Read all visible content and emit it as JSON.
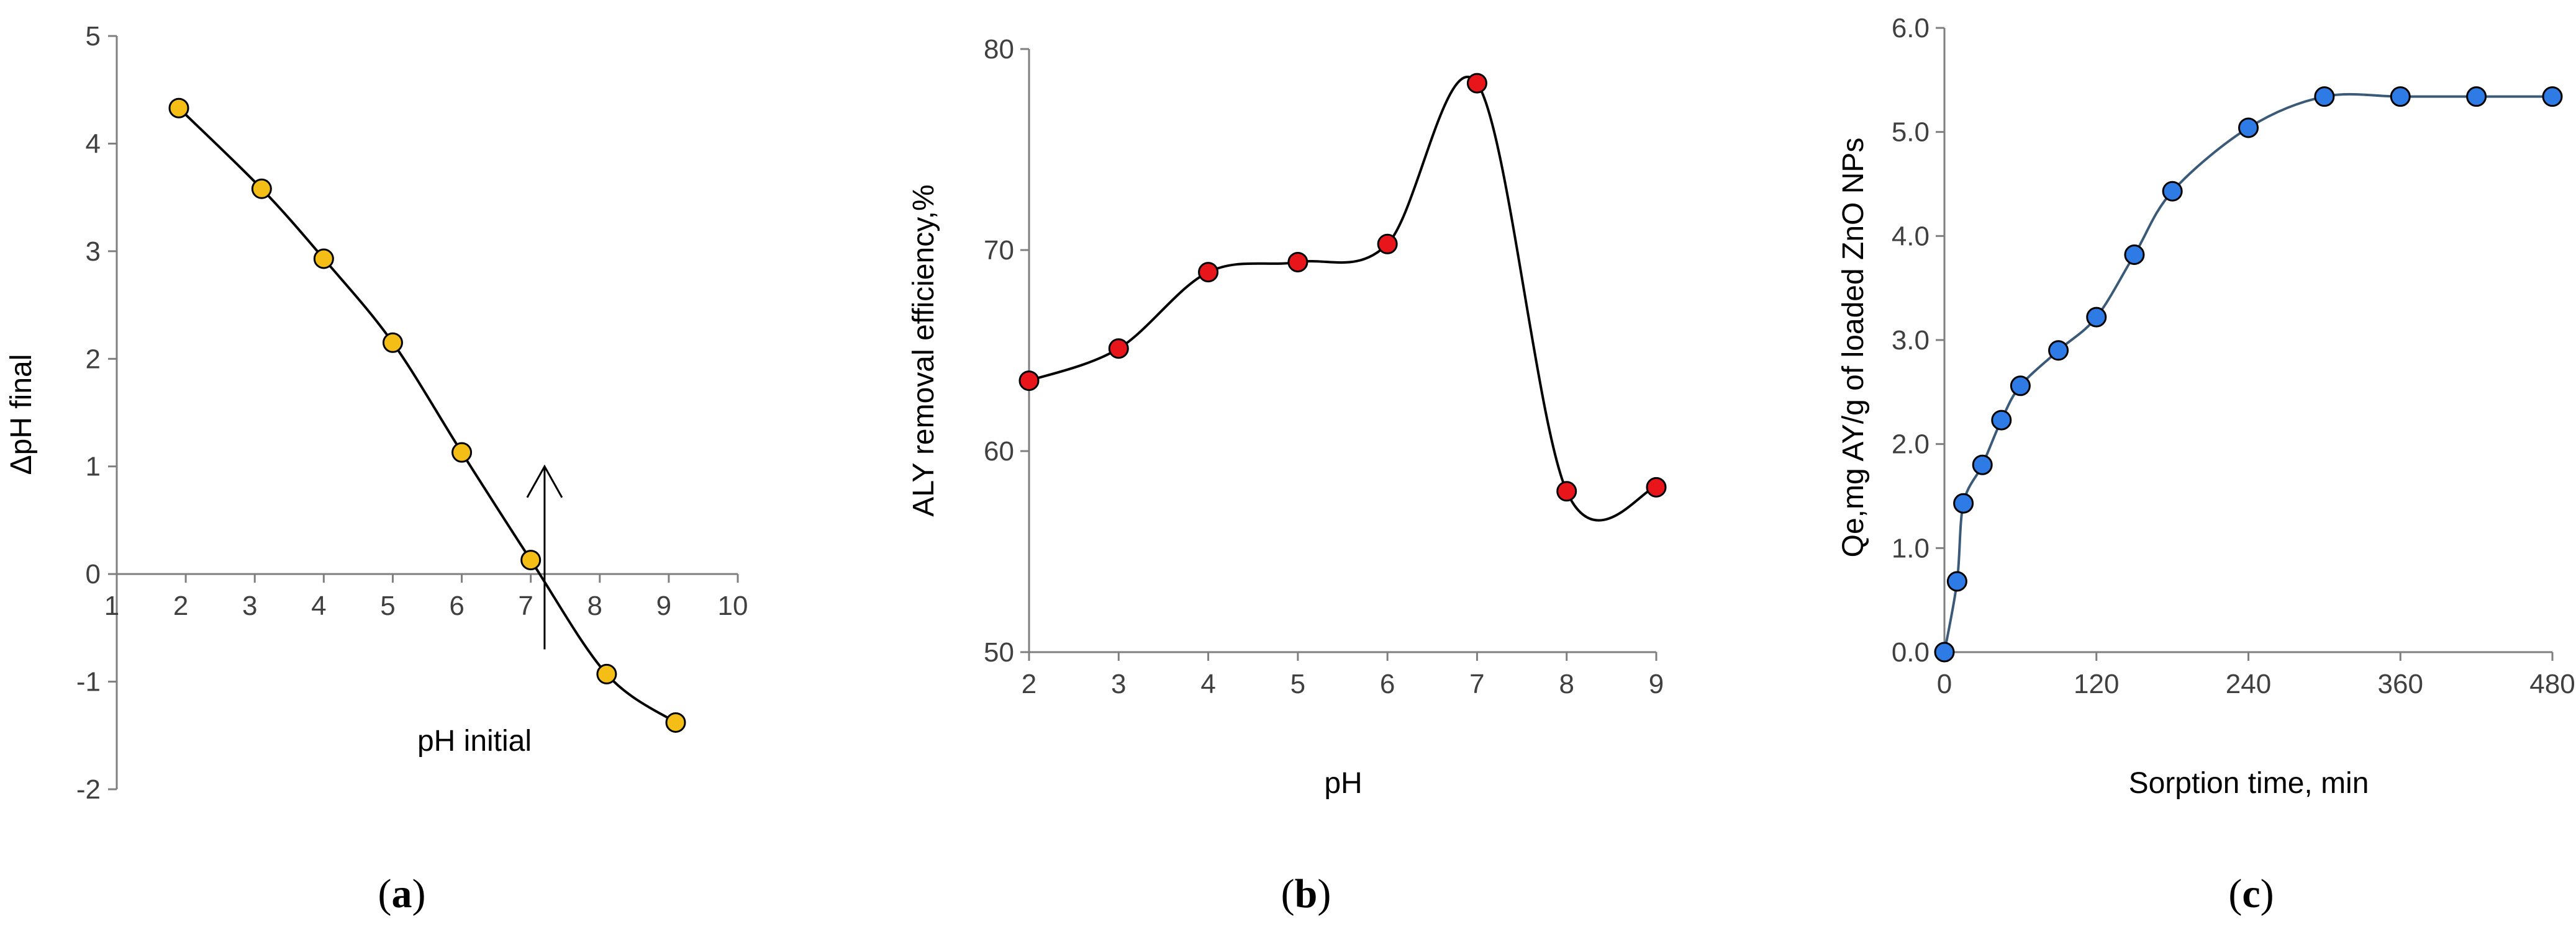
{
  "chart_data": [
    {
      "id": "a",
      "type": "line",
      "caption_letter": "a",
      "xlabel": "pH initial",
      "ylabel": "ΔpH final",
      "xlim": [
        1,
        10
      ],
      "ylim": [
        -2,
        5
      ],
      "xticks": [
        1,
        2,
        3,
        4,
        5,
        6,
        7,
        8,
        9,
        10
      ],
      "yticks": [
        -2,
        -1,
        0,
        1,
        2,
        3,
        4,
        5
      ],
      "series": [
        {
          "name": "ΔpH final",
          "x": [
            1.9,
            3.1,
            4.0,
            5.0,
            6.0,
            7.0,
            8.1,
            9.1
          ],
          "y": [
            4.33,
            3.58,
            2.93,
            2.15,
            1.13,
            0.13,
            -0.93,
            -1.38
          ],
          "marker_color": "#F5BE16"
        }
      ],
      "annotations": [
        {
          "type": "arrow",
          "x": 7.2,
          "y_from": -0.7,
          "y_to": 1.0
        }
      ]
    },
    {
      "id": "b",
      "type": "line",
      "caption_letter": "b",
      "xlabel": "pH",
      "ylabel": "ALY removal efficiency,%",
      "xlim": [
        2,
        9
      ],
      "ylim": [
        50,
        80
      ],
      "xticks": [
        2,
        3,
        4,
        5,
        6,
        7,
        8,
        9
      ],
      "yticks": [
        50,
        60,
        70,
        80
      ],
      "series": [
        {
          "name": "ALY removal efficiency",
          "x": [
            2,
            3,
            4,
            5,
            6,
            7,
            8,
            9
          ],
          "y": [
            63.5,
            65.1,
            68.9,
            69.4,
            70.3,
            78.3,
            58.0,
            58.2
          ],
          "marker_color": "#E8151B"
        }
      ]
    },
    {
      "id": "c",
      "type": "line",
      "caption_letter": "c",
      "xlabel": "Sorption time, min",
      "ylabel": "Qe,mg AY/g of loaded ZnO NPs",
      "xlim": [
        0,
        480
      ],
      "ylim": [
        0,
        6
      ],
      "xticks": [
        "0",
        "120",
        "240",
        "360",
        "480"
      ],
      "yticks": [
        "0.0",
        "1.0",
        "2.0",
        "3.0",
        "4.0",
        "5.0",
        "6.0"
      ],
      "series": [
        {
          "name": "Qe",
          "x": [
            0,
            10,
            15,
            30,
            45,
            60,
            90,
            120,
            150,
            180,
            240,
            300,
            360,
            420,
            480
          ],
          "y": [
            0,
            0.68,
            1.43,
            1.8,
            2.23,
            2.56,
            2.9,
            3.22,
            3.82,
            4.43,
            5.04,
            5.34,
            5.34,
            5.34,
            5.34
          ],
          "marker_color": "#2F7BE5"
        }
      ]
    }
  ]
}
